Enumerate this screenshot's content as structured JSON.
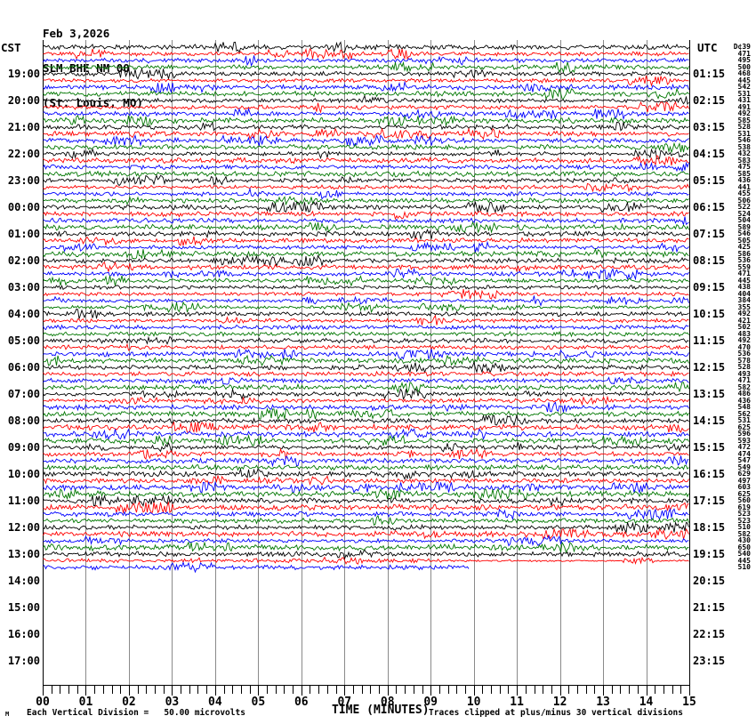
{
  "header": {
    "date": "Feb 3,2026",
    "station": "SLM BHE NM 00",
    "location": "(St. Louis, MO)"
  },
  "axes": {
    "left_label": "CST",
    "right_label": "UTC",
    "left_hours": [
      "19:00",
      "20:00",
      "21:00",
      "22:00",
      "23:00",
      "00:00",
      "01:00",
      "02:00",
      "03:00",
      "04:00",
      "05:00",
      "06:00",
      "07:00",
      "08:00",
      "09:00",
      "10:00",
      "11:00",
      "12:00",
      "13:00",
      "14:00",
      "15:00",
      "16:00",
      "17:00"
    ],
    "right_hours": [
      "01:15",
      "02:15",
      "03:15",
      "04:15",
      "05:15",
      "06:15",
      "07:15",
      "08:15",
      "09:15",
      "10:15",
      "11:15",
      "12:15",
      "13:15",
      "14:15",
      "15:15",
      "16:15",
      "17:15",
      "18:15",
      "19:15",
      "20:15",
      "21:15",
      "22:15",
      "23:15"
    ],
    "minute_ticks": [
      "00",
      "01",
      "02",
      "03",
      "04",
      "05",
      "06",
      "07",
      "08",
      "09",
      "10",
      "11",
      "12",
      "13",
      "14",
      "15"
    ]
  },
  "footer": {
    "corner_mark": "M",
    "scale_note": "Each Vertical Division =   50.00 microvolts",
    "time_axis_label": "TIME (MINUTES)",
    "clip_note": "Traces clipped at plus/minus 30 vertical divisions"
  },
  "chart_data": {
    "type": "line",
    "subtype": "helicorder-seismogram",
    "title": "SLM BHE NM 00 — Feb 3,2026 (St. Louis, MO)",
    "xlabel": "TIME (MINUTES)",
    "x_range": [
      0,
      15
    ],
    "minutes_per_line": 15,
    "first_row_start_cst": "18:00",
    "last_row_start_cst": "13:30",
    "rows_with_data": 79,
    "grid_rows_total": 96,
    "last_row_end_fraction": 0.66,
    "quiet_row_index": 77,
    "quiet_row_from_fraction": 0.63,
    "clip_divisions": 30,
    "microvolts_per_division": 50.0,
    "trace_color_cycle": [
      "#000000",
      "#ff0000",
      "#0000ff",
      "#007700"
    ],
    "grid_color": "#8a8a8a",
    "row_peak_counts": [
      "D¢39",
      "471",
      "495",
      "500",
      "468",
      "445",
      "542",
      "531",
      "431",
      "491",
      "492",
      "585",
      "528",
      "531",
      "546",
      "538",
      "432",
      "583",
      "475",
      "585",
      "436",
      "441",
      "455",
      "506",
      "522",
      "524",
      "504",
      "589",
      "546",
      "505",
      "425",
      "586",
      "536",
      "559",
      "471",
      "445",
      "438",
      "404",
      "384",
      "355",
      "492",
      "421",
      "502",
      "483",
      "492",
      "470",
      "536",
      "578",
      "528",
      "493",
      "471",
      "582",
      "486",
      "436",
      "548",
      "562",
      "531",
      "625",
      "596",
      "593",
      "472",
      "474",
      "547",
      "549",
      "629",
      "497",
      "603",
      "625",
      "560",
      "619",
      "523",
      "523",
      "510",
      "582",
      "430",
      "650",
      "540",
      "445",
      "510"
    ]
  }
}
